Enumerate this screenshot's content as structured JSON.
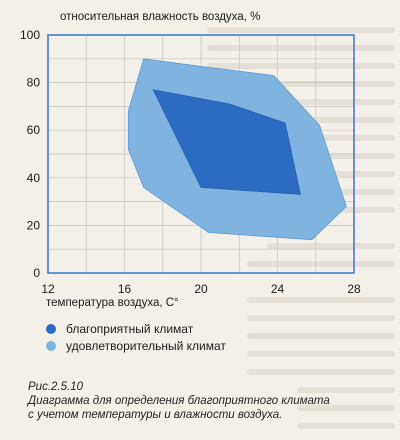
{
  "chart_data": {
    "type": "area",
    "ylabel": "относительная влажность воздуха, %",
    "xlabel": "температура воздуха, С°",
    "xlim": [
      12,
      28
    ],
    "ylim": [
      0,
      100
    ],
    "x_ticks": [
      "12",
      "16",
      "20",
      "24",
      "28"
    ],
    "y_ticks": [
      "0",
      "20",
      "40",
      "60",
      "80",
      "100"
    ],
    "grid": true,
    "legend_placement": "bottom-left",
    "series": [
      {
        "name": "удовлетворительный климат",
        "color": "#7fb3e0",
        "points": [
          [
            16.2,
            68
          ],
          [
            17.0,
            90
          ],
          [
            19.8,
            87
          ],
          [
            23.8,
            83
          ],
          [
            26.2,
            62
          ],
          [
            27.6,
            28
          ],
          [
            25.8,
            14
          ],
          [
            20.4,
            17
          ],
          [
            17.0,
            36
          ],
          [
            16.2,
            52
          ]
        ]
      },
      {
        "name": "благоприятный климат",
        "color": "#2b6cc2",
        "points": [
          [
            17.5,
            77
          ],
          [
            21.5,
            71
          ],
          [
            24.4,
            63
          ],
          [
            25.2,
            33
          ],
          [
            20.0,
            36
          ]
        ]
      }
    ]
  },
  "legend": {
    "favorable": "благоприятный климат",
    "satisfactory": "удовлетворительный климат"
  },
  "caption": {
    "figure": "Рис.2.5.10",
    "line1": "Диаграмма для определения благоприятного климата",
    "line2": "с учетом температуры и влажности воздуха."
  },
  "colors": {
    "favorable": "#2b6cc2",
    "satisfactory": "#7fb3e0",
    "grid": "#c8c4bc",
    "frame": "#2b6cc2"
  }
}
